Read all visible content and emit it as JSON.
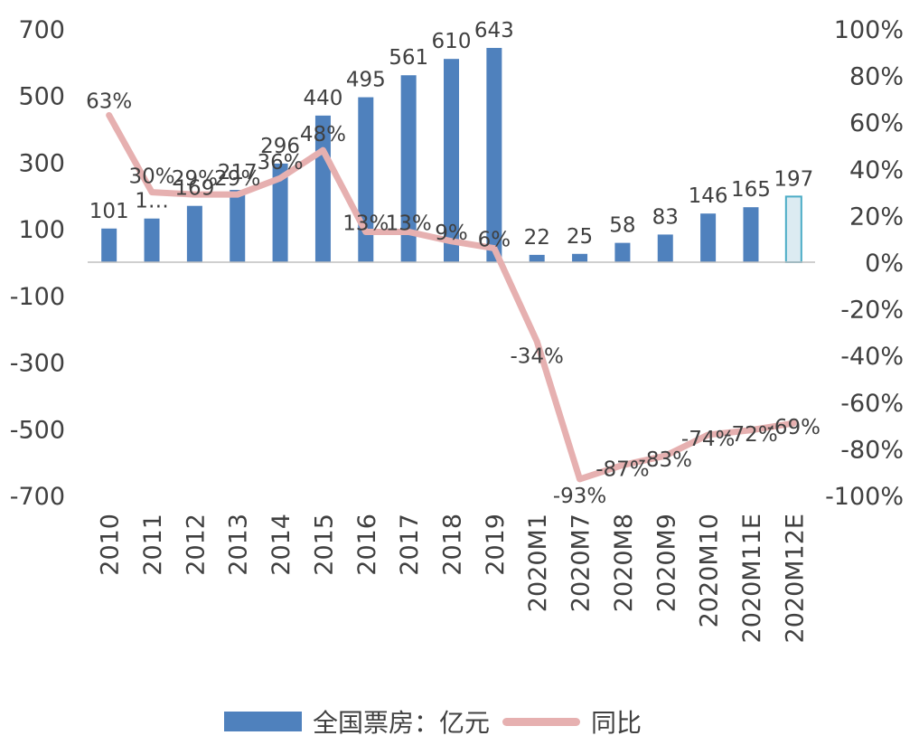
{
  "colors": {
    "bar": "#4f81bd",
    "bar_estimate_fill": "#dcebf2",
    "bar_estimate_stroke": "#4bacc6",
    "line": "#e6b0b0",
    "axis": "#bfbfbf",
    "text": "#404040"
  },
  "legend": {
    "bar_label": "全国票房：亿元",
    "line_label": "同比"
  },
  "chart_data": {
    "type": "bar",
    "categories": [
      "2010",
      "2011",
      "2012",
      "2013",
      "2014",
      "2015",
      "2016",
      "2017",
      "2018",
      "2019",
      "2020M1",
      "2020M7",
      "2020M8",
      "2020M9",
      "2020M10",
      "2020M11E",
      "2020M12E"
    ],
    "series": [
      {
        "name": "全国票房：亿元",
        "type": "bar",
        "axis": "left",
        "values": [
          101,
          131,
          169,
          217,
          296,
          440,
          495,
          561,
          610,
          643,
          22,
          25,
          58,
          83,
          146,
          165,
          197
        ],
        "labels": [
          "101",
          "1…",
          "169",
          "217",
          "296",
          "440",
          "495",
          "561",
          "610",
          "643",
          "22",
          "25",
          "58",
          "83",
          "146",
          "165",
          "197"
        ],
        "estimate_index": 16
      },
      {
        "name": "同比",
        "type": "line",
        "axis": "right",
        "values": [
          63,
          30,
          29,
          29,
          36,
          48,
          13,
          13,
          9,
          6,
          -34,
          -93,
          -87,
          -83,
          -74,
          -72,
          -69
        ],
        "labels": [
          "63%",
          "30%",
          "29%",
          "29%",
          "36%",
          "48%",
          "13%",
          "13%",
          "9%",
          "6%",
          "-34%",
          "-93%",
          "-87%",
          "-83%",
          "-74%",
          "-72%",
          "-69%"
        ]
      }
    ],
    "ylim_left": [
      -700,
      700
    ],
    "ylim_right": [
      -100,
      100
    ],
    "yticks_left": [
      "700",
      "500",
      "300",
      "100",
      "-100",
      "-300",
      "-500",
      "-700"
    ],
    "yticks_right": [
      "100%",
      "80%",
      "60%",
      "40%",
      "20%",
      "0%",
      "-20%",
      "-40%",
      "-60%",
      "-80%",
      "-100%"
    ],
    "grid": false,
    "legend_position": "bottom"
  }
}
